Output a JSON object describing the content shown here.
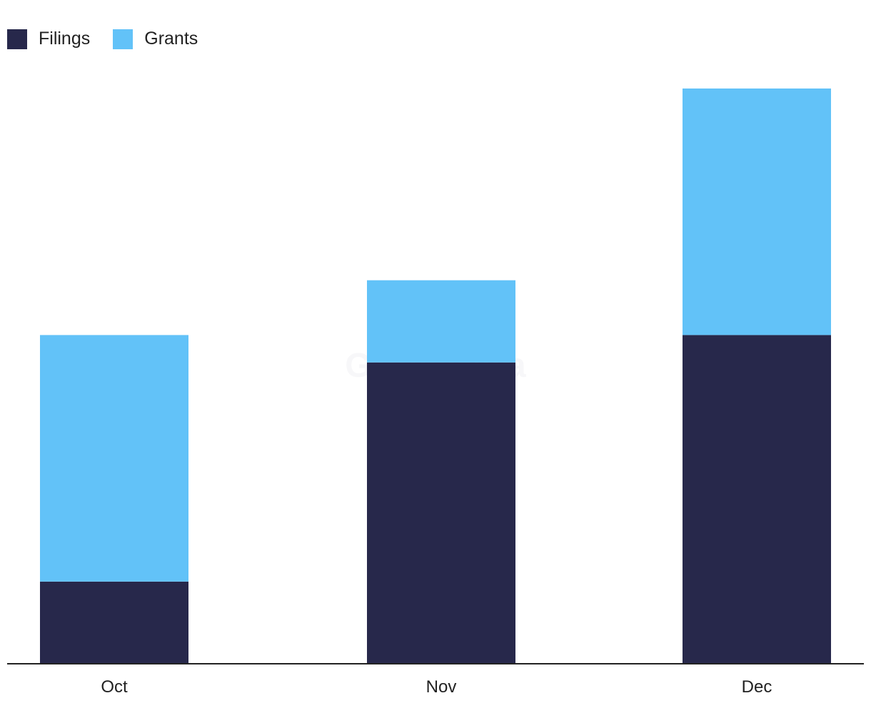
{
  "chart_data": {
    "type": "bar",
    "stacked": true,
    "categories": [
      "Oct",
      "Nov",
      "Dec"
    ],
    "series": [
      {
        "name": "Filings",
        "values": [
          3,
          11,
          12
        ],
        "color": "#27284b"
      },
      {
        "name": "Grants",
        "values": [
          9,
          3,
          9
        ],
        "color": "#62c2f8"
      }
    ],
    "ylim": [
      0,
      21
    ],
    "grid": false,
    "legend_position": "top-left",
    "watermark": "GlobalData"
  }
}
